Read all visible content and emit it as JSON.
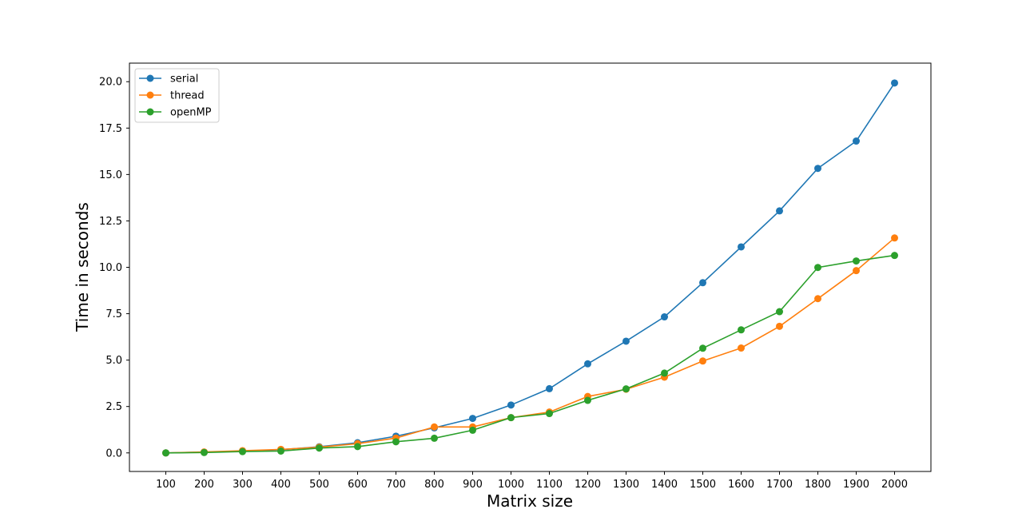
{
  "chart_data": {
    "type": "line",
    "title": "",
    "xlabel": "Matrix size",
    "ylabel": "Time in seconds",
    "categories": [
      "100",
      "200",
      "300",
      "400",
      "500",
      "600",
      "700",
      "800",
      "900",
      "1000",
      "1100",
      "1200",
      "1300",
      "1400",
      "1500",
      "1600",
      "1700",
      "1800",
      "1900",
      "2000"
    ],
    "yticks": [
      "0.0",
      "2.5",
      "5.0",
      "7.5",
      "10.0",
      "12.5",
      "15.0",
      "17.5",
      "20.0"
    ],
    "ylim": [
      -1.0,
      21.0
    ],
    "grid": false,
    "legend_position": "top-left",
    "series": [
      {
        "name": "serial",
        "color": "#1f77b4",
        "values": [
          0.0,
          0.04,
          0.1,
          0.17,
          0.33,
          0.55,
          0.9,
          1.35,
          1.86,
          2.58,
          3.46,
          4.8,
          6.02,
          7.33,
          9.17,
          11.1,
          13.04,
          15.33,
          16.8,
          19.93
        ]
      },
      {
        "name": "thread",
        "color": "#ff7f0e",
        "values": [
          0.0,
          0.05,
          0.12,
          0.19,
          0.31,
          0.5,
          0.8,
          1.4,
          1.4,
          1.9,
          2.2,
          3.04,
          3.43,
          4.08,
          4.95,
          5.65,
          6.82,
          8.31,
          9.82,
          11.58
        ]
      },
      {
        "name": "openMP",
        "color": "#2ca02c",
        "values": [
          0.0,
          0.02,
          0.07,
          0.1,
          0.26,
          0.34,
          0.6,
          0.79,
          1.22,
          1.9,
          2.12,
          2.83,
          3.45,
          4.3,
          5.64,
          6.63,
          7.61,
          9.99,
          10.34,
          10.64
        ]
      }
    ]
  }
}
